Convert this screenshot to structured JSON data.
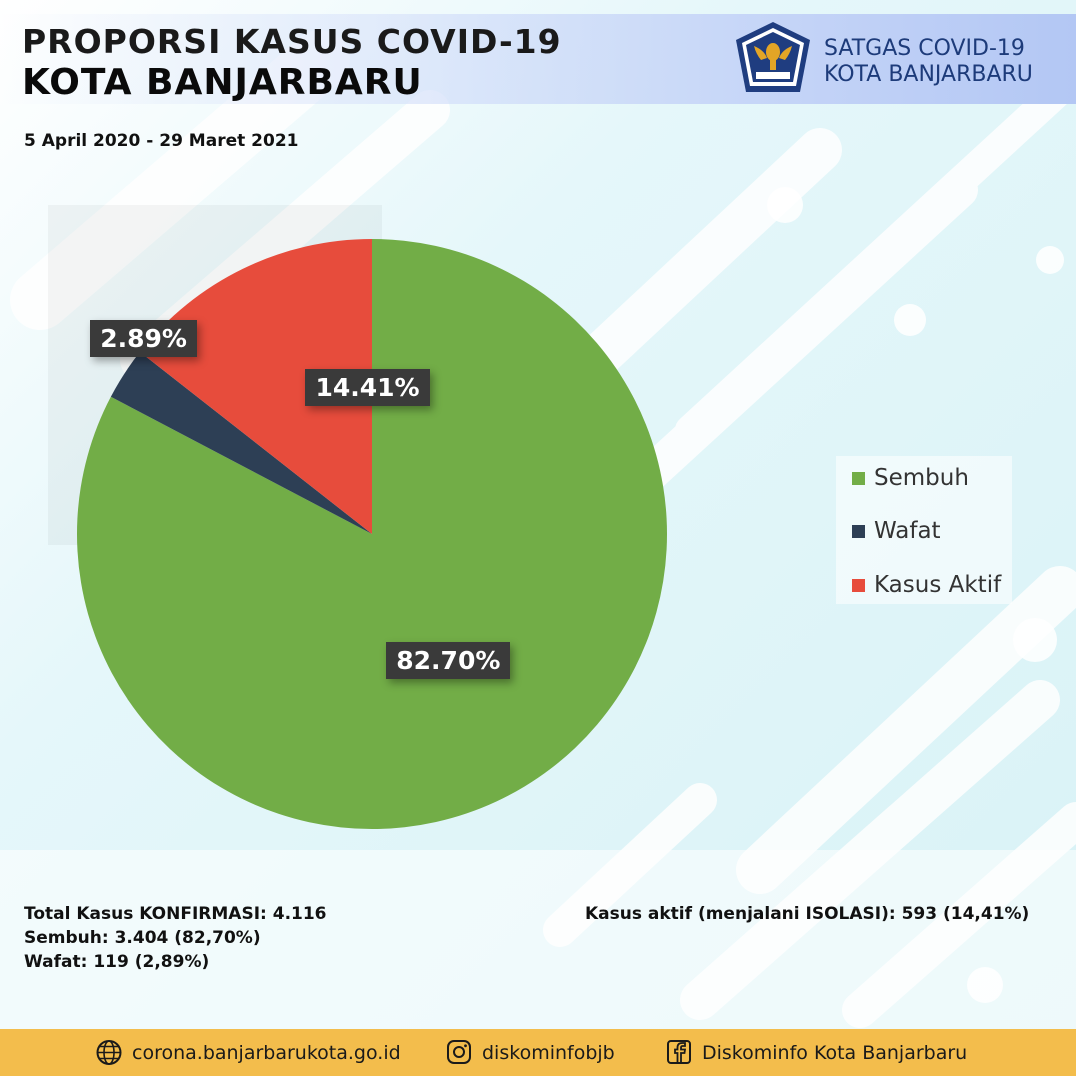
{
  "header": {
    "title_line1": "PROPORSI KASUS COVID-19",
    "title_line2": "KOTA BANJARBARU",
    "date_range": "5 April 2020 - 29 Maret 2021",
    "org_line1": "SATGAS COVID-19",
    "org_line2": "KOTA BANJARBARU",
    "logo_icon": "garuda-emblem-icon"
  },
  "chart_data": {
    "type": "pie",
    "title": "PROPORSI KASUS COVID-19 KOTA BANJARBARU",
    "slices": [
      {
        "name": "Sembuh",
        "value": 82.7,
        "label": "82.70%",
        "color": "#72ad47"
      },
      {
        "name": "Wafat",
        "value": 2.89,
        "label": "2.89%",
        "color": "#2d3f55"
      },
      {
        "name": "Kasus Aktif",
        "value": 14.41,
        "label": "14.41%",
        "color": "#e74c3c"
      }
    ],
    "start_angle": "12 o'clock",
    "direction": "clockwise",
    "legend_position": "right"
  },
  "legend": {
    "items": [
      {
        "label": "Sembuh",
        "color": "#72ad47"
      },
      {
        "label": "Wafat",
        "color": "#2d3f55"
      },
      {
        "label": "Kasus Aktif",
        "color": "#e74c3c"
      }
    ]
  },
  "summary": {
    "total": "Total Kasus KONFIRMASI: 4.116",
    "sembuh": "Sembuh: 3.404 (82,70%)",
    "wafat": "Wafat: 119 (2,89%)",
    "aktif": "Kasus aktif (menjalani ISOLASI): 593 (14,41%)"
  },
  "footer": {
    "website": "corona.banjarbarukota.go.id",
    "instagram": "diskominfobjb",
    "facebook": "Diskominfo Kota Banjarbaru",
    "website_icon": "globe-icon",
    "instagram_icon": "instagram-icon",
    "facebook_icon": "facebook-icon",
    "bg_color": "#f3bd4c"
  },
  "colors": {
    "accent_background": "#d9f3f7",
    "header_band": "#b3c7f4"
  }
}
